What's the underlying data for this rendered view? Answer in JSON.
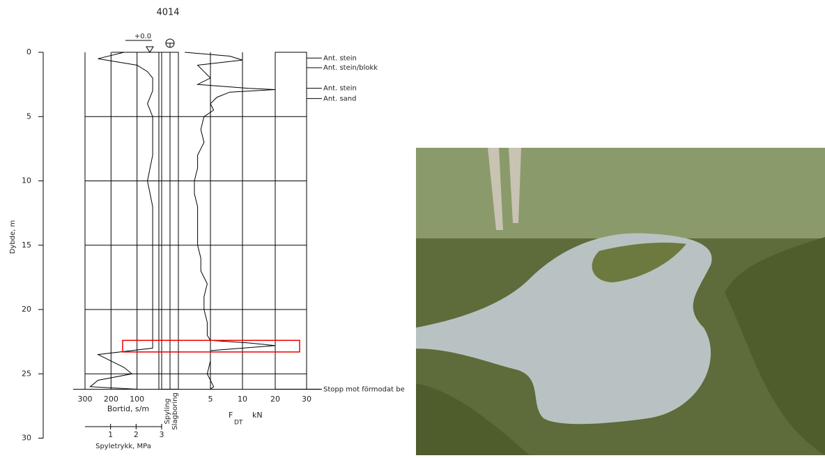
{
  "title": "4014",
  "elevation_label": "+0.0",
  "depth_axis": {
    "label": "Dybde, m",
    "range": [
      0,
      30
    ],
    "ticks": [
      0,
      5,
      10,
      15,
      20,
      25,
      30
    ]
  },
  "bortid_axis": {
    "label": "Bortid, s/m",
    "range": [
      300,
      0
    ],
    "ticks": [
      300,
      200,
      100
    ]
  },
  "spyletrykk_axis": {
    "label": "Spyletrykk, MPa",
    "range": [
      0,
      3
    ],
    "ticks": [
      1,
      2,
      3
    ]
  },
  "force_axis": {
    "label_main": "F",
    "label_sub": "DT",
    "unit": "kN",
    "range": [
      0,
      30
    ],
    "ticks": [
      5,
      10,
      20,
      30
    ]
  },
  "columns": [
    "Spyling",
    "Slagboring"
  ],
  "annotations": [
    {
      "text": "Ant. stein",
      "depth": 0.45
    },
    {
      "text": "Ant. stein/blokk",
      "depth": 1.2
    },
    {
      "text": "Ant. stein",
      "depth": 2.8
    },
    {
      "text": "Ant. sand",
      "depth": 3.6
    },
    {
      "text": "Stopp mot förmodat be",
      "depth": 26.2
    }
  ],
  "highlight_depths": [
    22.4,
    23.3
  ],
  "force_trace": {
    "depth": [
      0,
      0.3,
      0.6,
      1,
      1.5,
      2,
      2.5,
      2.8,
      2.9,
      3.1,
      3.5,
      4,
      4.5,
      5,
      6,
      7,
      8,
      9,
      10,
      11,
      12,
      13,
      14,
      15,
      16,
      17,
      18,
      19,
      20,
      21,
      22,
      22.4,
      22.6,
      22.8,
      23,
      23.2,
      24,
      25,
      26,
      26.2
    ],
    "kN": [
      1,
      8,
      10,
      3,
      4,
      5,
      3,
      12,
      20,
      8,
      6,
      5,
      5.5,
      4,
      3.5,
      4,
      3,
      3,
      2.5,
      2.5,
      3,
      3,
      3,
      3,
      3.5,
      3.5,
      4.5,
      4,
      4,
      4.5,
      4.5,
      5,
      12,
      20,
      10,
      5,
      5,
      4.5,
      5.5,
      5
    ]
  },
  "bortid_trace": {
    "depth": [
      0,
      0.5,
      1,
      1.5,
      2,
      3,
      4,
      5,
      6,
      8,
      10,
      12,
      14,
      16,
      18,
      20,
      22,
      23,
      23.5,
      24,
      24.5,
      25,
      25.5,
      26,
      26.2
    ],
    "s_per_m": [
      150,
      250,
      100,
      60,
      40,
      40,
      60,
      40,
      40,
      40,
      60,
      40,
      40,
      40,
      40,
      40,
      40,
      40,
      250,
      200,
      150,
      120,
      250,
      280,
      100
    ]
  }
}
